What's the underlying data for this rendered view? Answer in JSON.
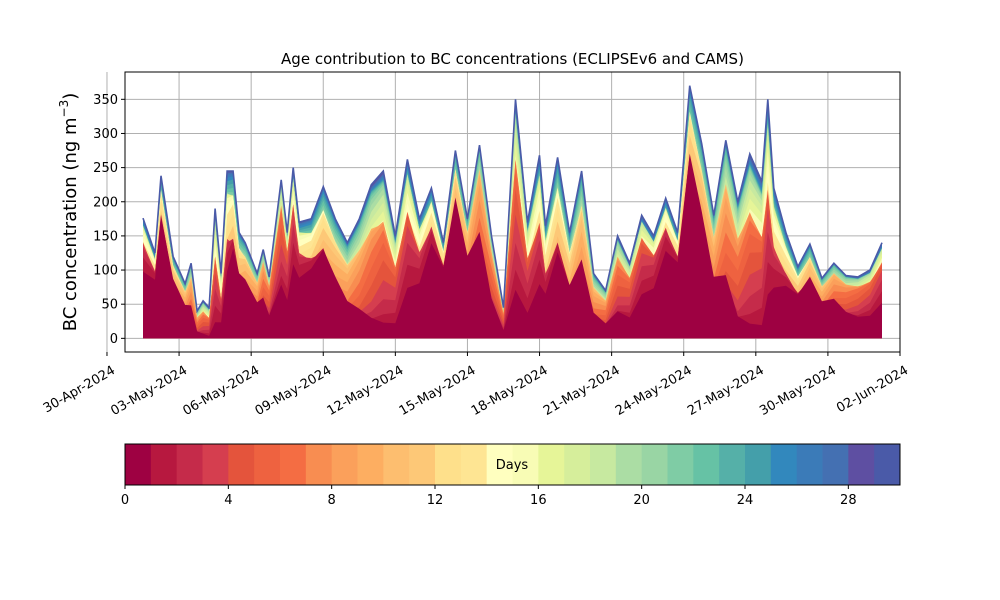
{
  "chart_data": [
    {
      "type": "area",
      "title": "Age contribution to BC concentrations (ECLIPSEv6 and CAMS)",
      "ylabel": "BC concentration (ng m",
      "ylabel_sup": "−3",
      "ylabel_tail": ")",
      "xlabel": "",
      "ylim": [
        -20,
        390
      ],
      "xlim": [
        "2024-04-30T18:00",
        "2024-06-02T00:00"
      ],
      "x_ticks": [
        "30-Apr-2024",
        "03-May-2024",
        "06-May-2024",
        "09-May-2024",
        "12-May-2024",
        "15-May-2024",
        "18-May-2024",
        "21-May-2024",
        "24-May-2024",
        "27-May-2024",
        "30-May-2024",
        "02-Jun-2024"
      ],
      "y_ticks": [
        0,
        50,
        100,
        150,
        200,
        250,
        300,
        350
      ],
      "grid": true,
      "stacking": "cumulative by age (0–30 days)",
      "x": [
        "2024-05-01T12:00",
        "2024-05-02T00:00",
        "2024-05-02T06:00",
        "2024-05-02T18:00",
        "2024-05-03T06:00",
        "2024-05-03T12:00",
        "2024-05-03T18:00",
        "2024-05-04T00:00",
        "2024-05-04T06:00",
        "2024-05-04T12:00",
        "2024-05-04T18:00",
        "2024-05-05T00:00",
        "2024-05-05T06:00",
        "2024-05-05T12:00",
        "2024-05-05T18:00",
        "2024-05-06T06:00",
        "2024-05-06T12:00",
        "2024-05-06T18:00",
        "2024-05-07T06:00",
        "2024-05-07T12:00",
        "2024-05-07T18:00",
        "2024-05-08T00:00",
        "2024-05-08T12:00",
        "2024-05-09T00:00",
        "2024-05-09T12:00",
        "2024-05-10T00:00",
        "2024-05-10T12:00",
        "2024-05-11T00:00",
        "2024-05-11T12:00",
        "2024-05-12T00:00",
        "2024-05-12T12:00",
        "2024-05-13T00:00",
        "2024-05-13T12:00",
        "2024-05-14T00:00",
        "2024-05-14T12:00",
        "2024-05-15T00:00",
        "2024-05-15T12:00",
        "2024-05-16T00:00",
        "2024-05-16T12:00",
        "2024-05-17T00:00",
        "2024-05-17T12:00",
        "2024-05-18T00:00",
        "2024-05-18T06:00",
        "2024-05-18T18:00",
        "2024-05-19T06:00",
        "2024-05-19T18:00",
        "2024-05-20T06:00",
        "2024-05-20T18:00",
        "2024-05-21T06:00",
        "2024-05-21T18:00",
        "2024-05-22T06:00",
        "2024-05-22T18:00",
        "2024-05-23T06:00",
        "2024-05-23T18:00",
        "2024-05-24T06:00",
        "2024-05-24T18:00",
        "2024-05-25T06:00",
        "2024-05-25T18:00",
        "2024-05-26T06:00",
        "2024-05-26T18:00",
        "2024-05-27T06:00",
        "2024-05-27T12:00",
        "2024-05-27T18:00",
        "2024-05-28T06:00",
        "2024-05-28T18:00",
        "2024-05-29T06:00",
        "2024-05-29T18:00",
        "2024-05-30T06:00",
        "2024-05-30T18:00",
        "2024-05-31T06:00",
        "2024-05-31T18:00",
        "2024-06-01T06:00"
      ],
      "total": [
        176,
        125,
        238,
        120,
        80,
        110,
        40,
        55,
        45,
        190,
        95,
        245,
        245,
        155,
        140,
        95,
        130,
        90,
        232,
        155,
        250,
        170,
        175,
        222,
        175,
        140,
        175,
        225,
        245,
        150,
        262,
        175,
        220,
        140,
        275,
        175,
        283,
        150,
        45,
        350,
        170,
        268,
        165,
        265,
        155,
        245,
        95,
        70,
        150,
        110,
        180,
        150,
        205,
        155,
        370,
        285,
        180,
        290,
        200,
        270,
        230,
        350,
        220,
        155,
        105,
        138,
        88,
        110,
        92,
        90,
        100,
        140
      ],
      "colorbar": {
        "label": "Days",
        "min": 0,
        "max": 30,
        "ticks": [
          0,
          4,
          8,
          12,
          16,
          20,
          24,
          28
        ],
        "colors": [
          "#9e0142",
          "#b7183f",
          "#c52b4a",
          "#d53e4f",
          "#e4543c",
          "#ee6240",
          "#f46d43",
          "#f88d51",
          "#fba05b",
          "#fdae61",
          "#fdbe6f",
          "#fdc877",
          "#fee08b",
          "#fee593",
          "#ffffbf",
          "#f8fcb5",
          "#e6f598",
          "#d6ee9b",
          "#c7e9a0",
          "#abdda4",
          "#99d5a4",
          "#7fcca5",
          "#66c2a5",
          "#55b0a8",
          "#449faa",
          "#3288bd",
          "#3b7bb8",
          "#4470b2",
          "#5e4fa2",
          "#4a5aa8"
        ]
      }
    }
  ]
}
